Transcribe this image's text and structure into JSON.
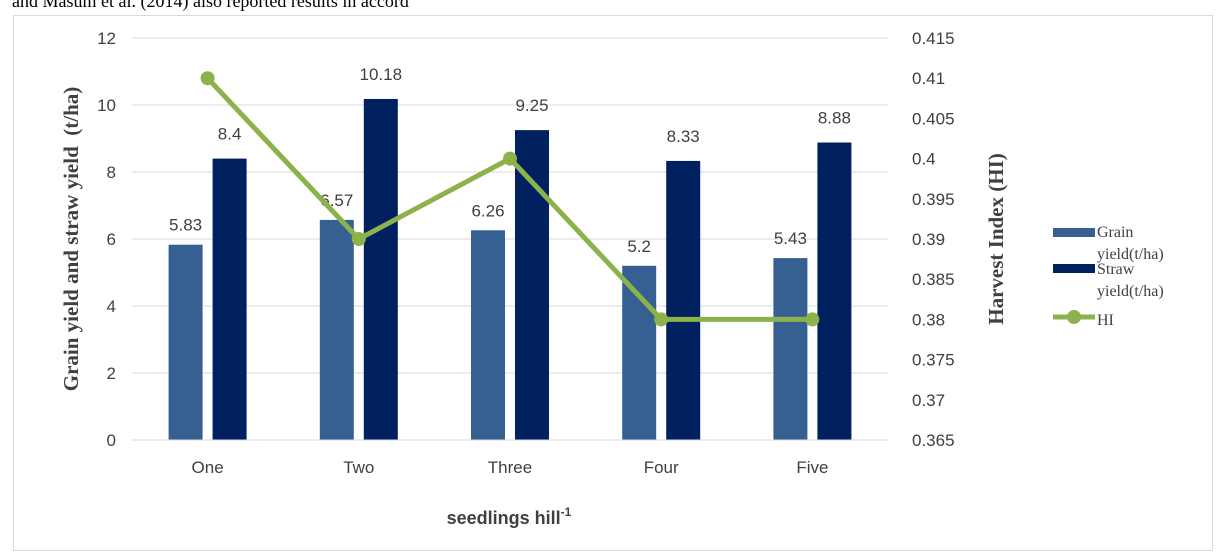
{
  "header_text": "and Masum et al. (2014) also reported results in accord",
  "chart_data": {
    "type": "bar",
    "categories": [
      "One",
      "Two",
      "Three",
      "Four",
      "Five"
    ],
    "series": [
      {
        "name": "Grain yield(t/ha)",
        "kind": "bar",
        "axis": "left",
        "color": "#376092",
        "values": [
          5.83,
          6.57,
          6.26,
          5.2,
          5.43
        ]
      },
      {
        "name": "Straw yield(t/ha)",
        "kind": "bar",
        "axis": "left",
        "color": "#002060",
        "values": [
          8.4,
          10.18,
          9.25,
          8.33,
          8.88
        ]
      },
      {
        "name": "HI",
        "kind": "line",
        "axis": "right",
        "color": "#8db14b",
        "values": [
          0.41,
          0.39,
          0.4,
          0.38,
          0.38
        ]
      }
    ],
    "data_labels": [
      "5.83",
      "8.4",
      "6.57",
      "10.18",
      "6.26",
      "9.25",
      "5.2",
      "8.33",
      "5.43",
      "8.88"
    ],
    "ylabel": "Grain yield and straw yield  (t/ha)",
    "y2label": "Harvest Index (HI)",
    "xlabel_main": "seedlings hill",
    "xlabel_sup": "-1",
    "ylim": [
      0,
      12
    ],
    "y2lim": [
      0.365,
      0.415
    ],
    "y_ticks": [
      "0",
      "2",
      "4",
      "6",
      "8",
      "10",
      "12"
    ],
    "y2_ticks": [
      "0.365",
      "0.37",
      "0.375",
      "0.38",
      "0.385",
      "0.39",
      "0.395",
      "0.4",
      "0.405",
      "0.41",
      "0.415"
    ],
    "legend_lines": {
      "grain": [
        "Grain",
        "yield(t/ha)"
      ],
      "straw": [
        "Straw",
        "yield(t/ha)"
      ],
      "hi": [
        "HI"
      ]
    },
    "legend_position": "right",
    "grid": true
  }
}
